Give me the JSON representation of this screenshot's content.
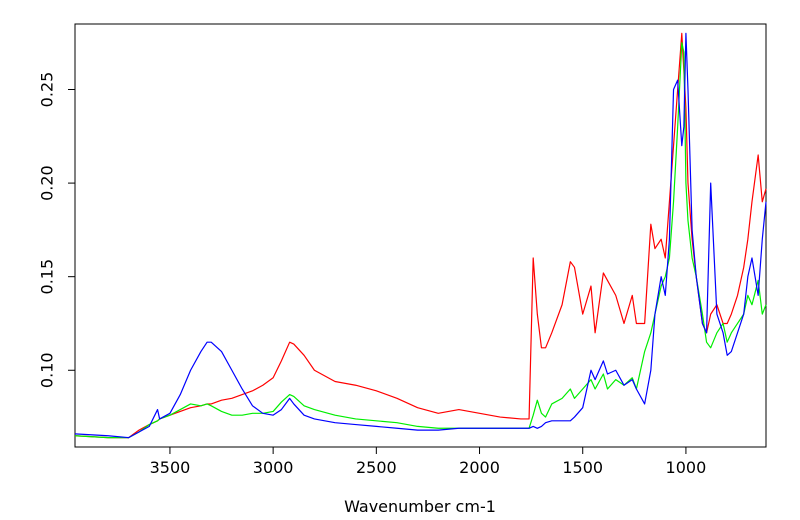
{
  "chart_data": {
    "type": "line",
    "x_label": "Wavenumber cm-1",
    "x": [
      3960,
      3800,
      3700,
      3650,
      3600,
      3560,
      3550,
      3500,
      3450,
      3400,
      3350,
      3320,
      3300,
      3250,
      3200,
      3150,
      3100,
      3050,
      3000,
      2960,
      2920,
      2900,
      2850,
      2800,
      2700,
      2600,
      2500,
      2400,
      2300,
      2200,
      2100,
      2000,
      1900,
      1800,
      1760,
      1740,
      1720,
      1700,
      1680,
      1650,
      1600,
      1560,
      1540,
      1500,
      1460,
      1440,
      1400,
      1380,
      1340,
      1300,
      1260,
      1240,
      1200,
      1170,
      1150,
      1120,
      1100,
      1080,
      1060,
      1040,
      1020,
      1010,
      1000,
      990,
      970,
      950,
      920,
      900,
      880,
      850,
      820,
      800,
      780,
      750,
      720,
      700,
      680,
      650,
      630,
      612
    ],
    "series": [
      {
        "color": "#ff0000",
        "values": [
          0.065,
          0.064,
          0.064,
          0.068,
          0.071,
          0.073,
          0.074,
          0.076,
          0.078,
          0.08,
          0.081,
          0.082,
          0.082,
          0.084,
          0.085,
          0.087,
          0.089,
          0.092,
          0.096,
          0.105,
          0.115,
          0.114,
          0.108,
          0.1,
          0.094,
          0.092,
          0.089,
          0.085,
          0.08,
          0.077,
          0.079,
          0.077,
          0.075,
          0.074,
          0.074,
          0.16,
          0.13,
          0.112,
          0.112,
          0.12,
          0.135,
          0.158,
          0.155,
          0.13,
          0.145,
          0.12,
          0.152,
          0.148,
          0.14,
          0.125,
          0.14,
          0.125,
          0.125,
          0.178,
          0.165,
          0.17,
          0.16,
          0.19,
          0.22,
          0.25,
          0.28,
          0.26,
          0.24,
          0.2,
          0.17,
          0.15,
          0.125,
          0.12,
          0.13,
          0.135,
          0.125,
          0.125,
          0.13,
          0.14,
          0.155,
          0.17,
          0.19,
          0.215,
          0.19,
          0.197
        ]
      },
      {
        "color": "#00ee00",
        "values": [
          0.065,
          0.064,
          0.064,
          0.067,
          0.071,
          0.073,
          0.074,
          0.076,
          0.079,
          0.082,
          0.081,
          0.082,
          0.081,
          0.078,
          0.076,
          0.076,
          0.077,
          0.077,
          0.078,
          0.083,
          0.087,
          0.086,
          0.081,
          0.079,
          0.076,
          0.074,
          0.073,
          0.072,
          0.07,
          0.069,
          0.069,
          0.069,
          0.069,
          0.069,
          0.069,
          0.076,
          0.084,
          0.077,
          0.075,
          0.082,
          0.085,
          0.09,
          0.085,
          0.09,
          0.095,
          0.09,
          0.098,
          0.09,
          0.095,
          0.092,
          0.096,
          0.09,
          0.11,
          0.12,
          0.13,
          0.145,
          0.15,
          0.16,
          0.19,
          0.23,
          0.275,
          0.27,
          0.2,
          0.18,
          0.16,
          0.15,
          0.13,
          0.115,
          0.112,
          0.12,
          0.125,
          0.115,
          0.12,
          0.125,
          0.13,
          0.14,
          0.135,
          0.148,
          0.13,
          0.135
        ]
      },
      {
        "color": "#0000ff",
        "values": [
          0.066,
          0.065,
          0.064,
          0.067,
          0.07,
          0.079,
          0.074,
          0.077,
          0.087,
          0.1,
          0.11,
          0.115,
          0.115,
          0.11,
          0.1,
          0.09,
          0.081,
          0.077,
          0.076,
          0.079,
          0.085,
          0.082,
          0.076,
          0.074,
          0.072,
          0.071,
          0.07,
          0.069,
          0.068,
          0.068,
          0.069,
          0.069,
          0.069,
          0.069,
          0.069,
          0.07,
          0.069,
          0.07,
          0.072,
          0.073,
          0.073,
          0.073,
          0.075,
          0.08,
          0.1,
          0.095,
          0.105,
          0.098,
          0.1,
          0.092,
          0.095,
          0.09,
          0.082,
          0.1,
          0.13,
          0.15,
          0.14,
          0.17,
          0.25,
          0.255,
          0.22,
          0.23,
          0.28,
          0.25,
          0.175,
          0.15,
          0.125,
          0.12,
          0.2,
          0.13,
          0.12,
          0.108,
          0.11,
          0.12,
          0.13,
          0.15,
          0.16,
          0.14,
          0.17,
          0.19
        ]
      }
    ],
    "xlim": [
      3960,
      612
    ],
    "xticks": [
      3500,
      3000,
      2500,
      2000,
      1500,
      1000
    ],
    "ylim": [
      0.059,
      0.285
    ],
    "yticks": [
      {
        "value": 0.1,
        "label": "0.10"
      },
      0.15,
      {
        "value": 0.2,
        "label": "0.20"
      },
      0.25
    ],
    "grid": false
  }
}
